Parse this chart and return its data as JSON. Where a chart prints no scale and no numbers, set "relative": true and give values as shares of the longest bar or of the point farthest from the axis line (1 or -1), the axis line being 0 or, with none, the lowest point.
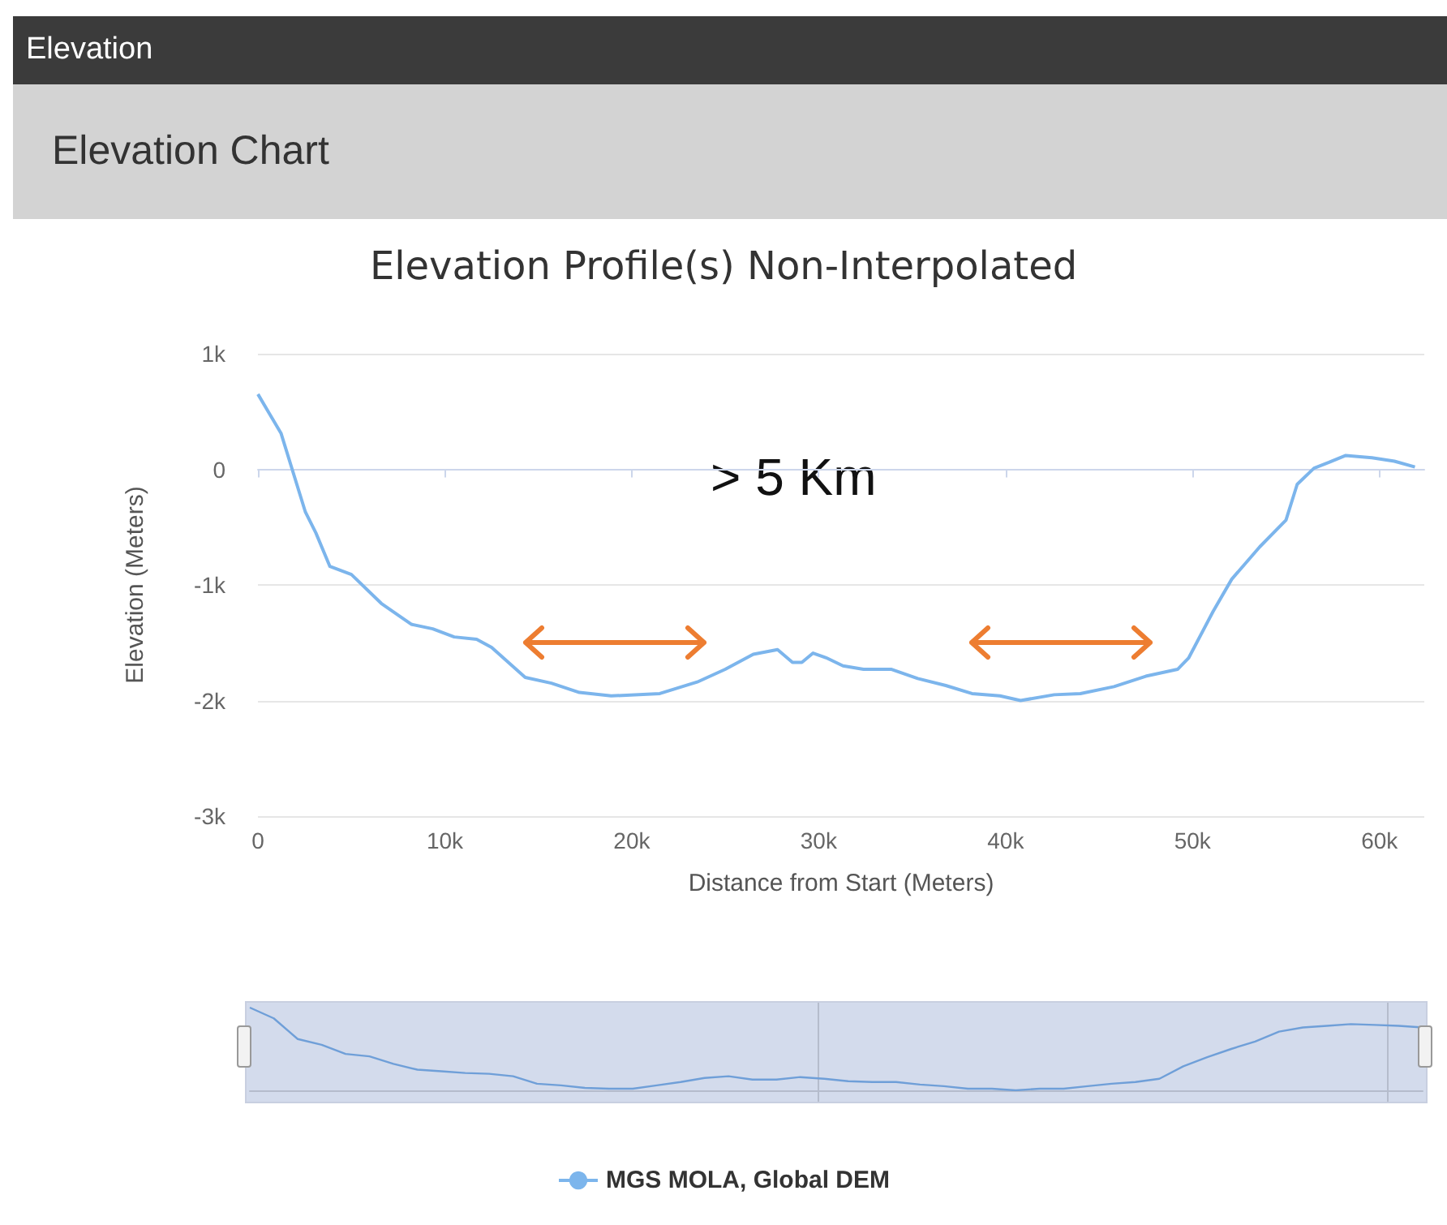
{
  "chart_data": [
    {
      "type": "line",
      "title": "Elevation Profile(s) Non-Interpolated",
      "xlabel": "Distance from Start (Meters)",
      "ylabel": "Elevation (Meters)",
      "annotations": [
        "Elevation",
        "Elevation Chart",
        "> 5 Km"
      ],
      "series": [
        {
          "name": "MGS MOLA, Global DEM",
          "color": "#7cb5ec",
          "x": [
            0,
            1240,
            2540,
            3100,
            3850,
            5000,
            6600,
            8200,
            9350,
            10500,
            11700,
            12500,
            14300,
            15700,
            17200,
            18900,
            21500,
            23500,
            25000,
            26500,
            27800,
            28600,
            29100,
            29700,
            30400,
            31300,
            32400,
            33900,
            35300,
            36800,
            38200,
            39700,
            40800,
            42600,
            44000,
            45800,
            47500,
            49200,
            49800,
            51100,
            52100,
            53600,
            55000,
            55600,
            56500,
            57300,
            58200,
            59600,
            60800,
            61900
          ],
          "values": [
            650,
            310,
            -370,
            -550,
            -840,
            -910,
            -1160,
            -1340,
            -1380,
            -1450,
            -1470,
            -1540,
            -1800,
            -1850,
            -1930,
            -1960,
            -1940,
            -1840,
            -1730,
            -1600,
            -1560,
            -1670,
            -1670,
            -1590,
            -1630,
            -1700,
            -1730,
            -1730,
            -1810,
            -1870,
            -1940,
            -1960,
            -2000,
            -1950,
            -1940,
            -1880,
            -1790,
            -1730,
            -1630,
            -1230,
            -950,
            -670,
            -440,
            -130,
            10,
            60,
            120,
            100,
            70,
            20
          ]
        }
      ],
      "xlim": [
        0,
        62400
      ],
      "xticks": [
        0,
        {
          "value": 10000,
          "label": "10k"
        },
        {
          "value": 20000,
          "label": "20k"
        },
        {
          "value": 30000,
          "label": "30k"
        },
        {
          "value": 40000,
          "label": "40k"
        },
        {
          "value": 50000,
          "label": "50k"
        },
        {
          "value": 60000,
          "label": "60k"
        }
      ],
      "ylim": [
        -3000,
        1000
      ],
      "yticks": [
        {
          "value": -3000,
          "label": "-3k"
        },
        {
          "value": -2000,
          "label": "-2k"
        },
        {
          "value": -1000,
          "label": "-1k"
        },
        0,
        {
          "value": 1000,
          "label": "1k"
        }
      ],
      "grid": "y",
      "legend": "bottom",
      "marker": "none",
      "line_style": "solid"
    },
    {
      "type": "line",
      "relative": true,
      "categories": [
        null,
        null,
        null,
        null,
        null,
        null,
        null,
        null,
        null,
        null,
        null,
        null,
        null,
        null,
        null,
        null,
        null,
        null,
        null,
        null,
        null,
        null,
        null,
        null,
        null,
        null,
        null,
        null,
        null,
        null,
        null,
        null,
        null,
        null,
        null,
        null,
        null,
        null,
        null,
        null,
        null,
        null,
        null,
        null,
        null,
        null,
        null,
        null,
        null,
        null
      ],
      "series": [
        {
          "color": "#6f9fd8",
          "values": [
            1,
            0.87,
            0.62,
            0.55,
            0.44,
            0.41,
            0.32,
            0.25,
            0.23,
            0.21,
            0.2,
            0.17,
            0.08,
            0.06,
            0.03,
            0.02,
            0.02,
            0.06,
            0.1,
            0.15,
            0.17,
            0.13,
            0.13,
            0.16,
            0.14,
            0.11,
            0.1,
            0.1,
            0.07,
            0.05,
            0.02,
            0.02,
            0,
            0.02,
            0.02,
            0.05,
            0.08,
            0.1,
            0.14,
            0.29,
            0.4,
            0.5,
            0.59,
            0.71,
            0.76,
            0.78,
            0.8,
            0.79,
            0.78,
            0.76
          ]
        }
      ],
      "grid": false,
      "legend": false,
      "marker": "none",
      "line_style": "solid"
    }
  ]
}
